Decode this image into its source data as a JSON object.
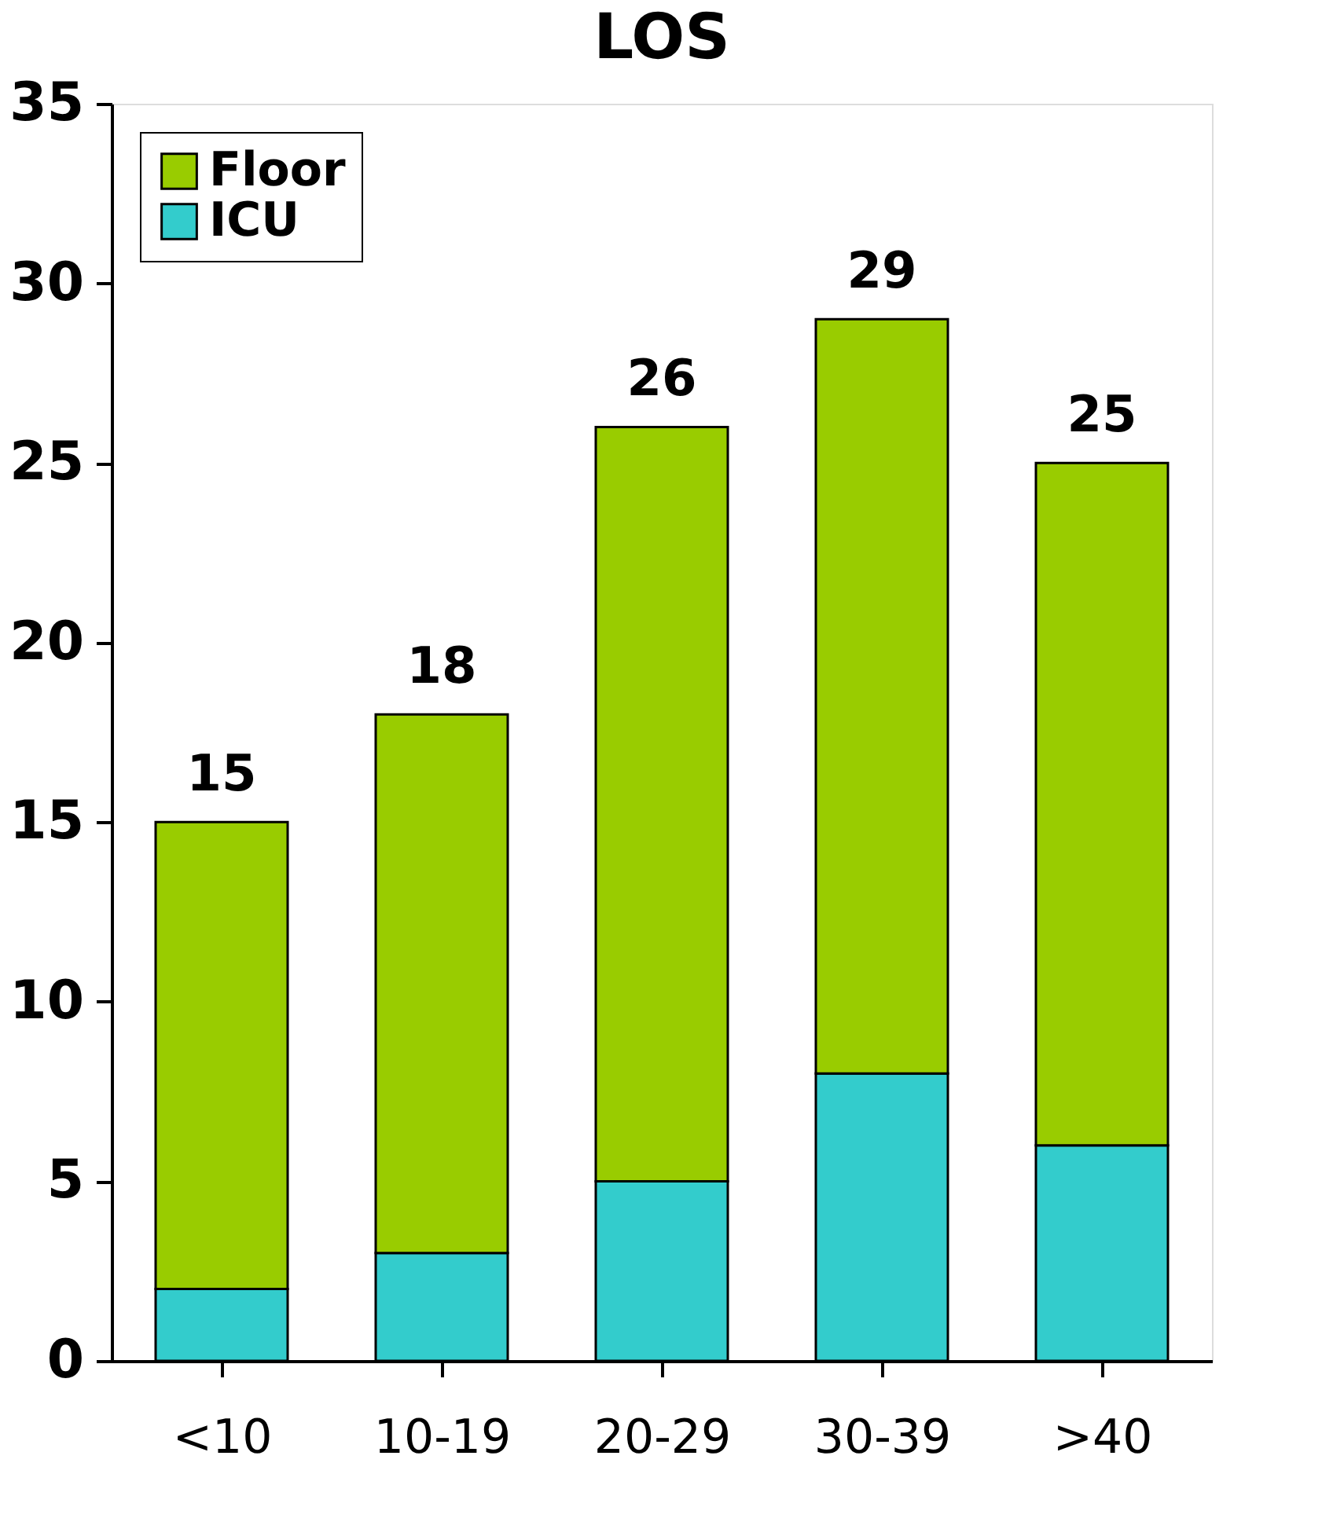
{
  "chart_data": {
    "type": "bar",
    "title": "LOS",
    "stacked": true,
    "categories": [
      "<10",
      "10-19",
      "20-29",
      "30-39",
      ">40"
    ],
    "series": [
      {
        "name": "ICU",
        "color": "#33cccc",
        "values": [
          2,
          3,
          5,
          8,
          6
        ]
      },
      {
        "name": "Floor",
        "color": "#99cc00",
        "values": [
          13,
          15,
          21,
          21,
          19
        ]
      }
    ],
    "totals": [
      "15",
      "18",
      "26",
      "29",
      "25"
    ],
    "ylim": [
      0,
      35
    ],
    "yticks": [
      0,
      5,
      10,
      15,
      20,
      25,
      30,
      35
    ],
    "grid": false,
    "legend": "top left"
  }
}
